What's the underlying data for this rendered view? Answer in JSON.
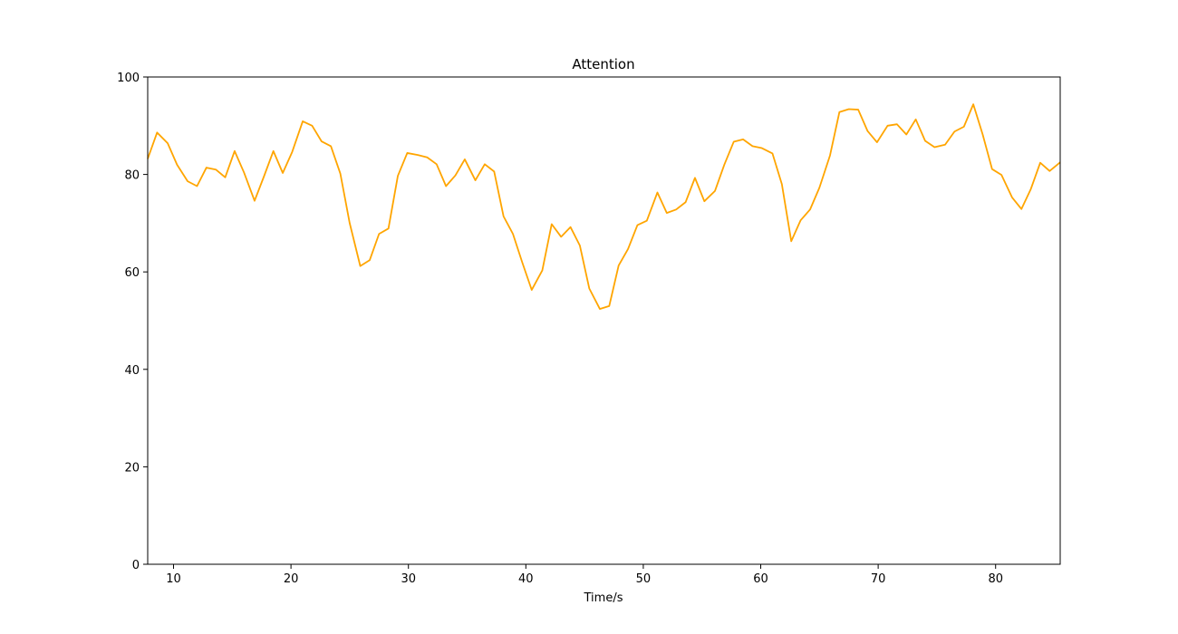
{
  "chart_data": {
    "type": "line",
    "title": "Attention",
    "xlabel": "Time/s",
    "ylabel": "",
    "xlim": [
      7.8,
      85.5
    ],
    "ylim": [
      0,
      100
    ],
    "xticks": [
      10,
      20,
      30,
      40,
      50,
      60,
      70,
      80
    ],
    "yticks": [
      0,
      20,
      40,
      60,
      80,
      100
    ],
    "grid": false,
    "series": [
      {
        "color": "#ffa500",
        "x": [
          7.8,
          8.6,
          9.5,
          10.3,
          11.2,
          12.0,
          12.8,
          13.6,
          14.4,
          15.2,
          16.0,
          16.9,
          17.7,
          18.5,
          19.3,
          20.1,
          21.0,
          21.8,
          22.6,
          23.4,
          24.2,
          25.0,
          25.9,
          26.7,
          27.5,
          28.3,
          29.1,
          29.9,
          30.8,
          31.6,
          32.4,
          33.2,
          34.0,
          34.8,
          35.7,
          36.5,
          37.3,
          38.1,
          38.9,
          39.7,
          40.5,
          41.4,
          42.2,
          43.0,
          43.8,
          44.6,
          45.4,
          46.3,
          47.1,
          47.9,
          48.7,
          49.5,
          50.3,
          51.2,
          52.0,
          52.8,
          53.6,
          54.4,
          55.2,
          56.1,
          56.9,
          57.7,
          58.5,
          59.3,
          60.1,
          61.0,
          61.8,
          62.6,
          63.4,
          64.2,
          65.0,
          65.9,
          66.7,
          67.5,
          68.3,
          69.1,
          69.9,
          70.8,
          71.6,
          72.4,
          73.2,
          74.0,
          74.8,
          75.7,
          76.5,
          77.3,
          78.1,
          78.9,
          79.7,
          80.5,
          81.4,
          82.2,
          83.0,
          83.8,
          84.6,
          85.5
        ],
        "y": [
          83.2,
          88.6,
          86.4,
          82.0,
          78.6,
          77.6,
          81.4,
          81.0,
          79.4,
          84.8,
          80.4,
          74.6,
          79.6,
          84.8,
          80.3,
          84.6,
          90.9,
          90.0,
          86.8,
          85.8,
          80.2,
          70.0,
          61.2,
          62.4,
          67.8,
          68.9,
          79.7,
          84.4,
          84.0,
          83.5,
          82.1,
          77.6,
          79.8,
          83.1,
          78.8,
          82.1,
          80.6,
          71.4,
          67.8,
          61.9,
          56.3,
          60.3,
          69.8,
          67.2,
          69.2,
          65.4,
          56.6,
          52.4,
          53.0,
          61.3,
          64.7,
          69.6,
          70.5,
          76.3,
          72.1,
          72.8,
          74.3,
          79.3,
          74.5,
          76.6,
          82.0,
          86.7,
          87.2,
          85.8,
          85.4,
          84.3,
          78.0,
          66.3,
          70.6,
          72.8,
          77.3,
          83.9,
          92.8,
          93.4,
          93.3,
          88.9,
          86.6,
          90.0,
          90.3,
          88.2,
          91.3,
          86.9,
          85.6,
          86.1,
          88.8,
          89.8,
          94.4,
          88.2,
          81.1,
          79.9,
          75.3,
          72.9,
          77.0,
          82.4,
          80.7,
          82.5
        ]
      }
    ]
  }
}
